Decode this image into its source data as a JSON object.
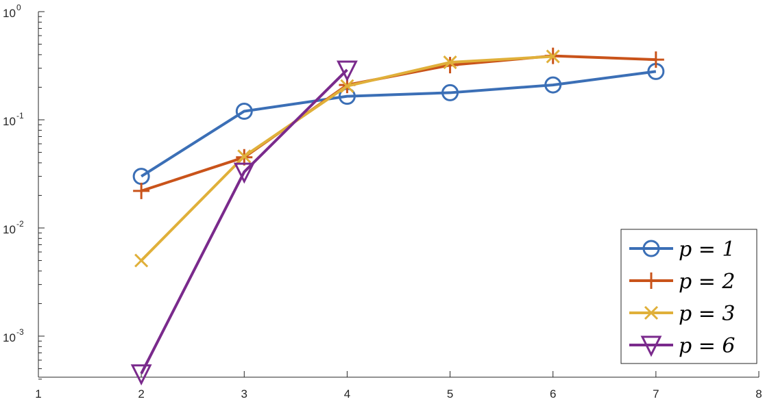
{
  "chart_data": {
    "type": "line",
    "title": "",
    "xlabel": "",
    "ylabel": "",
    "x_scale": "linear",
    "y_scale": "log",
    "xlim": [
      1,
      8
    ],
    "ylim": [
      0.0004,
      1
    ],
    "grid": false,
    "legend_position": "bottom-right",
    "x_ticks": [
      "1",
      "2",
      "3",
      "4",
      "5",
      "6",
      "7",
      "8"
    ],
    "y_ticks": [
      {
        "base": "10",
        "exp": "0",
        "value": 1
      },
      {
        "base": "10",
        "exp": "-1",
        "value": 0.1
      },
      {
        "base": "10",
        "exp": "-2",
        "value": 0.01
      },
      {
        "base": "10",
        "exp": "-3",
        "value": 0.001
      }
    ],
    "series": [
      {
        "name": "p = 1",
        "color": "#3b6fb6",
        "marker": "circle",
        "x": [
          2,
          3,
          4,
          5,
          6,
          7
        ],
        "y": [
          0.03,
          0.12,
          0.165,
          0.178,
          0.21,
          0.28
        ]
      },
      {
        "name": "p = 2",
        "color": "#c9531a",
        "marker": "plus",
        "x": [
          2,
          3,
          4,
          5,
          6,
          7
        ],
        "y": [
          0.022,
          0.045,
          0.21,
          0.32,
          0.39,
          0.36
        ]
      },
      {
        "name": "p = 3",
        "color": "#e0b03a",
        "marker": "x",
        "x": [
          2,
          3,
          4,
          5,
          6
        ],
        "y": [
          0.005,
          0.046,
          0.205,
          0.34,
          0.385
        ]
      },
      {
        "name": "p = 6",
        "color": "#7a2a8c",
        "marker": "triangle-down",
        "x": [
          2,
          3,
          4
        ],
        "y": [
          0.00045,
          0.033,
          0.29
        ]
      }
    ]
  }
}
